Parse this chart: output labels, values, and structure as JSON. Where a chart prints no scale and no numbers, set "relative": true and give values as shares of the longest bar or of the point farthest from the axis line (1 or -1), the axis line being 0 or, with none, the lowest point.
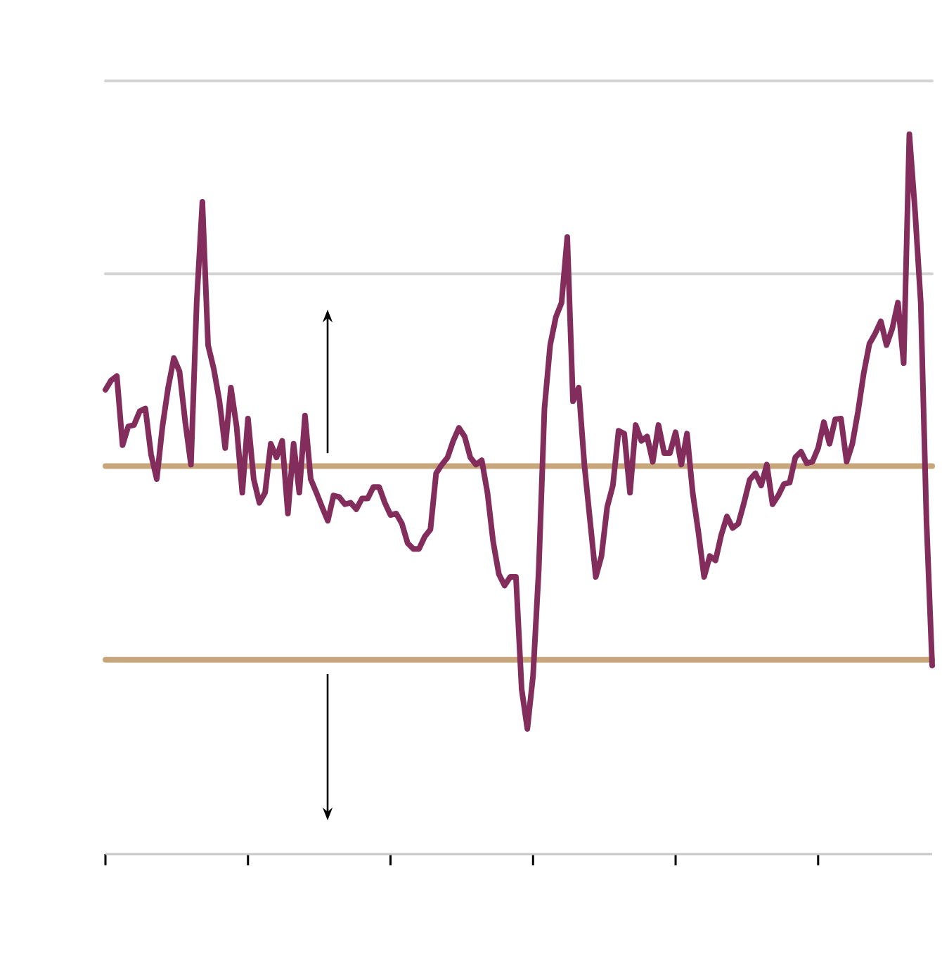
{
  "chart_data": {
    "type": "line",
    "relative": true,
    "categories": [
      null,
      null,
      null,
      null,
      null,
      null,
      null,
      null,
      null,
      null,
      null,
      null,
      null,
      null,
      null,
      null,
      null,
      null,
      null,
      null,
      null,
      null,
      null,
      null,
      null,
      null,
      null,
      null,
      null,
      null,
      null,
      null,
      null,
      null,
      null,
      null,
      null,
      null,
      null,
      null,
      null,
      null,
      null,
      null,
      null,
      null,
      null,
      null,
      null,
      null,
      null,
      null,
      null,
      null,
      null,
      null,
      null,
      null,
      null,
      null,
      null,
      null,
      null,
      null,
      null,
      null,
      null,
      null,
      null,
      null,
      null,
      null,
      null,
      null,
      null,
      null,
      null,
      null,
      null,
      null,
      null,
      null,
      null,
      null,
      null,
      null,
      null,
      null,
      null,
      null,
      null,
      null,
      null,
      null,
      null,
      null,
      null,
      null,
      null,
      null,
      null,
      null,
      null,
      null,
      null,
      null,
      null,
      null,
      null,
      null,
      null,
      null,
      null,
      null,
      null,
      null,
      null,
      null,
      null,
      null,
      null,
      null,
      null,
      null,
      null,
      null,
      null,
      null,
      null,
      null,
      null,
      null,
      null,
      null,
      null,
      null,
      null,
      null,
      null,
      null,
      null,
      null,
      null,
      null,
      null,
      null
    ],
    "series": [
      {
        "color": "#832d5c",
        "values": [
          0.645,
          0.658,
          0.664,
          0.568,
          0.594,
          0.596,
          0.615,
          0.619,
          0.555,
          0.521,
          0.594,
          0.648,
          0.689,
          0.67,
          0.6,
          0.541,
          0.766,
          0.906,
          0.707,
          0.674,
          0.629,
          0.564,
          0.648,
          0.594,
          0.502,
          0.605,
          0.521,
          0.488,
          0.502,
          0.57,
          0.551,
          0.574,
          0.473,
          0.57,
          0.502,
          0.609,
          0.521,
          0.502,
          0.482,
          0.463,
          0.498,
          0.496,
          0.486,
          0.488,
          0.479,
          0.494,
          0.494,
          0.51,
          0.51,
          0.488,
          0.471,
          0.473,
          0.459,
          0.432,
          0.424,
          0.424,
          0.441,
          0.451,
          0.529,
          0.541,
          0.551,
          0.574,
          0.592,
          0.58,
          0.551,
          0.541,
          0.547,
          0.502,
          0.434,
          0.389,
          0.373,
          0.385,
          0.385,
          0.229,
          0.174,
          0.248,
          0.395,
          0.619,
          0.707,
          0.746,
          0.766,
          0.857,
          0.629,
          0.648,
          0.541,
          0.463,
          0.385,
          0.414,
          0.482,
          0.512,
          0.588,
          0.584,
          0.502,
          0.596,
          0.574,
          0.58,
          0.545,
          0.596,
          0.557,
          0.557,
          0.586,
          0.541,
          0.584,
          0.502,
          0.447,
          0.385,
          0.414,
          0.408,
          0.443,
          0.469,
          0.453,
          0.459,
          0.488,
          0.52,
          0.529,
          0.512,
          0.541,
          0.486,
          0.498,
          0.514,
          0.516,
          0.551,
          0.559,
          0.543,
          0.545,
          0.564,
          0.6,
          0.57,
          0.604,
          0.605,
          0.545,
          0.57,
          0.615,
          0.668,
          0.709,
          0.723,
          0.74,
          0.707,
          0.73,
          0.766,
          0.682,
          1.0,
          0.893,
          0.766,
          0.463,
          0.262
        ]
      }
    ],
    "ref_lines": [
      {
        "axis": "y",
        "value": 1.074,
        "color": "#d4d4d4"
      },
      {
        "axis": "y",
        "value": 0.806,
        "color": "#d4d4d4"
      },
      {
        "axis": "y",
        "value": 0.539,
        "color": "#c8a67c"
      },
      {
        "axis": "y",
        "value": 0.27,
        "color": "#c8a67c"
      }
    ]
  }
}
